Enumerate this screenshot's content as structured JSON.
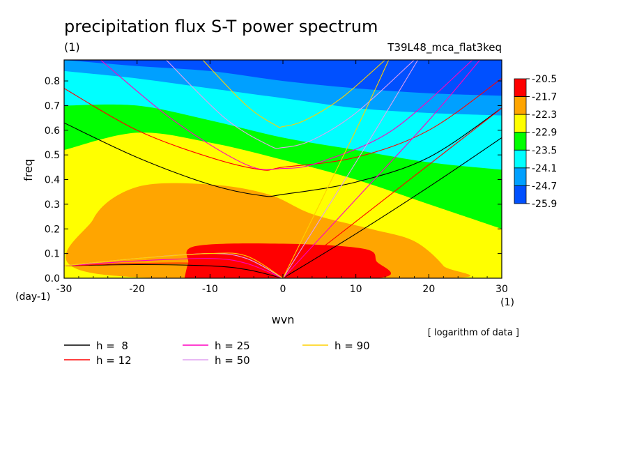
{
  "chart_data": {
    "type": "heatmap",
    "title": "precipitation flux S-T power spectrum",
    "subtitle_left": "(1)",
    "subtitle_right": "T39L48_mca_flat3keq",
    "xlabel": "wvn",
    "ylabel": "freq",
    "x_unit": "(1)",
    "y_unit": "(day-1)",
    "note": "[ logarithm of data ]",
    "xlim": [
      -30,
      30
    ],
    "ylim": [
      0,
      0.885
    ],
    "x_ticks": [
      "-30",
      "-20",
      "-10",
      "0",
      "10",
      "20",
      "30"
    ],
    "y_ticks": [
      "0.0",
      "0.1",
      "0.2",
      "0.3",
      "0.4",
      "0.5",
      "0.6",
      "0.7",
      "0.8"
    ],
    "colorbar": {
      "labels": [
        "-20.5",
        "-21.7",
        "-22.3",
        "-22.9",
        "-23.5",
        "-24.1",
        "-24.7",
        "-25.9"
      ],
      "colors": [
        "#ff0000",
        "#ffa500",
        "#ffff00",
        "#00ff00",
        "#00ffff",
        "#00a0ff",
        "#0050ff"
      ]
    },
    "contour_regions": [
      {
        "level_range": "-25.9 to -24.7",
        "color": "#0050ff",
        "lower_boundary": {
          "x": [
            -30,
            -20,
            -10,
            0,
            10,
            20,
            30
          ],
          "y": [
            0.885,
            0.86,
            0.84,
            0.8,
            0.77,
            0.75,
            0.74
          ]
        }
      },
      {
        "level_range": "-24.7 to -24.1",
        "color": "#00a0ff",
        "lower_boundary": {
          "x": [
            -30,
            -20,
            -10,
            0,
            10,
            20,
            30
          ],
          "y": [
            0.84,
            0.81,
            0.77,
            0.73,
            0.69,
            0.67,
            0.66
          ]
        }
      },
      {
        "level_range": "-24.1 to -23.5",
        "color": "#00ffff",
        "lower_boundary": {
          "x": [
            -30,
            -20,
            -10,
            0,
            10,
            20,
            30
          ],
          "y": [
            0.7,
            0.7,
            0.64,
            0.57,
            0.52,
            0.47,
            0.44
          ]
        }
      },
      {
        "level_range": "-23.5 to -22.9",
        "color": "#00ff00",
        "lower_boundary": {
          "x": [
            -30,
            -20,
            -10,
            0,
            10,
            20,
            30
          ],
          "y": [
            0.52,
            0.59,
            0.55,
            0.48,
            0.4,
            0.3,
            0.2
          ]
        }
      },
      {
        "level_range": "-22.9 to -22.3",
        "color": "#ffff00"
      },
      {
        "level_range": "-22.3 to -21.7",
        "color": "#ffa500",
        "outline": {
          "x": [
            -26,
            -20,
            -10,
            -2,
            4,
            12,
            18,
            22,
            22,
            -26
          ],
          "y": [
            0.24,
            0.37,
            0.38,
            0.34,
            0.26,
            0.2,
            0.15,
            0.05,
            0,
            0.02
          ]
        }
      },
      {
        "level_range": "-21.7 to -20.5",
        "color": "#ffa500",
        "outline": {
          "x": [
            -13,
            -12,
            0,
            11,
            13,
            13,
            -13
          ],
          "y": [
            0.02,
            0.13,
            0.14,
            0.12,
            0.05,
            0,
            0
          ]
        }
      },
      {
        "level_range": "above -20.5",
        "color": "#ff0000",
        "outline": {
          "x": [
            -13.5,
            -13,
            -12,
            0,
            11,
            12.8,
            12.8,
            -13.5
          ],
          "y": [
            0,
            0.06,
            0.13,
            0.14,
            0.12,
            0.07,
            0,
            0
          ]
        }
      }
    ],
    "series": [
      {
        "name": "h =  8",
        "color": "#000000",
        "curves": [
          {
            "x": [
              -30,
              -20,
              -10,
              -3,
              0,
              10,
              20,
              30
            ],
            "y": [
              0.63,
              0.49,
              0.38,
              0.335,
              0.34,
              0.39,
              0.49,
              0.69
            ]
          },
          {
            "x": [
              -30,
              -20,
              -10,
              -5,
              0
            ],
            "y": [
              0.05,
              0.055,
              0.05,
              0.035,
              0
            ]
          },
          {
            "x": [
              0,
              10,
              20,
              30
            ],
            "y": [
              0,
              0.18,
              0.37,
              0.57
            ]
          }
        ]
      },
      {
        "name": "h = 12",
        "color": "#ff0000",
        "curves": [
          {
            "x": [
              -30,
              -20,
              -10,
              -3,
              0,
              10,
              20,
              30
            ],
            "y": [
              0.77,
              0.6,
              0.49,
              0.44,
              0.45,
              0.49,
              0.6,
              0.81
            ]
          },
          {
            "x": [
              -30,
              -20,
              -10,
              -5,
              0
            ],
            "y": [
              0.05,
              0.06,
              0.06,
              0.045,
              0
            ]
          },
          {
            "x": [
              0,
              10,
              20,
              30
            ],
            "y": [
              0,
              0.23,
              0.46,
              0.69
            ]
          }
        ]
      },
      {
        "name": "h = 25",
        "color": "#ff00c0",
        "curves": [
          {
            "x": [
              -25,
              -15,
              -5,
              0,
              5,
              15,
              26
            ],
            "y": [
              0.885,
              0.64,
              0.46,
              0.445,
              0.47,
              0.6,
              0.885
            ]
          },
          {
            "x": [
              -30,
              -20,
              -10,
              -5,
              0
            ],
            "y": [
              0.05,
              0.07,
              0.08,
              0.06,
              0
            ]
          },
          {
            "x": [
              0,
              10,
              20,
              27
            ],
            "y": [
              0,
              0.32,
              0.64,
              0.885
            ]
          }
        ]
      },
      {
        "name": "h = 50",
        "color": "#e0a0f0",
        "curves": [
          {
            "x": [
              -16,
              -8,
              -2,
              0,
              4,
              10,
              18
            ],
            "y": [
              0.885,
              0.65,
              0.54,
              0.53,
              0.56,
              0.67,
              0.885
            ]
          },
          {
            "x": [
              -30,
              -20,
              -10,
              -5,
              0
            ],
            "y": [
              0.05,
              0.08,
              0.1,
              0.08,
              0
            ]
          },
          {
            "x": [
              0,
              10,
              18.5
            ],
            "y": [
              0,
              0.47,
              0.885
            ]
          }
        ]
      },
      {
        "name": "h = 90",
        "color": "#ffd000",
        "curves": [
          {
            "x": [
              -11,
              -5,
              -1,
              0,
              3,
              8,
              14
            ],
            "y": [
              0.885,
              0.7,
              0.62,
              0.615,
              0.64,
              0.73,
              0.885
            ]
          },
          {
            "x": [
              -30,
              -20,
              -10,
              -5,
              0
            ],
            "y": [
              0.05,
              0.08,
              0.1,
              0.09,
              0
            ]
          },
          {
            "x": [
              0,
              10,
              14.5
            ],
            "y": [
              0,
              0.6,
              0.885
            ]
          }
        ]
      }
    ]
  }
}
